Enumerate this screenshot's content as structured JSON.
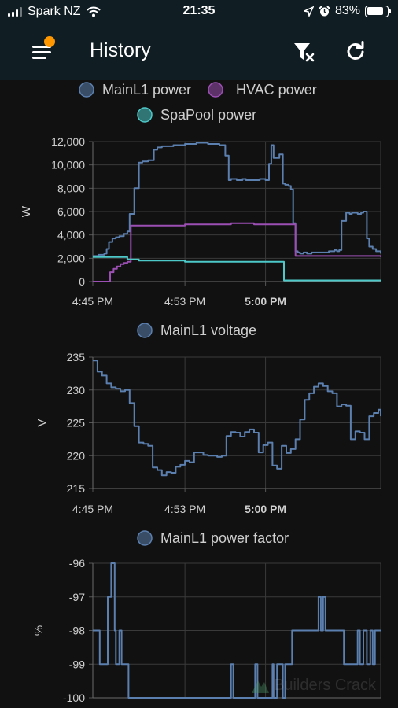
{
  "status_bar": {
    "carrier": "Spark NZ",
    "time": "21:35",
    "battery": "83%",
    "battery_level": 0.83
  },
  "toolbar": {
    "title": "History",
    "badge_color": "#ff9800"
  },
  "icons": {
    "menu": "menu-icon",
    "filter_clear": "filter-remove-icon",
    "refresh": "refresh-icon",
    "wifi": "wifi-icon",
    "location": "location-arrow-icon",
    "alarm": "alarm-clock-icon"
  },
  "watermark": {
    "text": "Builders Crack"
  },
  "chart_data": [
    {
      "type": "line",
      "ylabel": "W",
      "ylim": [
        0,
        12000
      ],
      "yticks": [
        "0",
        "2,000",
        "4,000",
        "6,000",
        "8,000",
        "10,000",
        "12,000"
      ],
      "ytick_values": [
        0,
        2000,
        4000,
        6000,
        8000,
        10000,
        12000
      ],
      "xlim": [
        0,
        25
      ],
      "xtick_labels": [
        "4:45 PM",
        "4:53 PM",
        "5:00 PM"
      ],
      "xtick_values": [
        0,
        8,
        15
      ],
      "xtick_bold": [
        false,
        false,
        true
      ],
      "grid": true,
      "legend_position": "top",
      "series": [
        {
          "name": "MainL1 power",
          "color": "#5b7fae",
          "x": [
            0,
            0.5,
            1,
            1.2,
            1.4,
            1.7,
            2,
            2.3,
            2.7,
            3,
            3.2,
            3.6,
            4,
            4.3,
            4.4,
            4.8,
            5.3,
            5.6,
            6,
            7,
            8,
            9,
            10,
            11,
            11.5,
            11.8,
            12,
            12.5,
            13,
            13.3,
            14,
            14.5,
            15,
            15.3,
            15.5,
            15.7,
            16.2,
            16.5,
            16.7,
            17,
            17.2,
            17.4,
            17.6,
            17.8,
            18,
            18.3,
            18.6,
            19,
            19.5,
            20,
            20.5,
            21,
            21.2,
            21.4,
            21.6,
            22,
            22.3,
            22.5,
            23,
            23.3,
            23.5,
            23.8,
            24,
            24.3,
            24.6,
            25
          ],
          "y": [
            2200,
            2300,
            2400,
            2800,
            3400,
            3700,
            3800,
            3900,
            4100,
            4300,
            5800,
            8000,
            10200,
            10300,
            10300,
            10400,
            11300,
            11500,
            11600,
            11700,
            11800,
            11900,
            11800,
            11700,
            10800,
            8700,
            8800,
            8700,
            8800,
            8700,
            8700,
            8800,
            8700,
            10100,
            11700,
            10600,
            10900,
            8400,
            8300,
            8200,
            7900,
            5000,
            2600,
            2500,
            2400,
            2500,
            2400,
            2500,
            2500,
            2500,
            2600,
            2700,
            2600,
            2700,
            5200,
            5900,
            5800,
            5900,
            5800,
            5900,
            6000,
            3700,
            3000,
            2800,
            2600,
            2400
          ]
        },
        {
          "name": "HVAC power",
          "color": "#9c4fb3",
          "x": [
            0,
            1.2,
            1.5,
            1.8,
            2.1,
            2.4,
            2.7,
            3.0,
            3.3,
            5,
            8,
            10,
            12,
            14,
            15.5,
            17.5,
            17.6,
            20,
            25
          ],
          "y": [
            0,
            0,
            800,
            1100,
            1300,
            1500,
            1600,
            1700,
            4800,
            4800,
            4900,
            4900,
            5000,
            4900,
            4900,
            4900,
            2200,
            2200,
            2100
          ]
        },
        {
          "name": "SpaPool power",
          "color": "#4ec9c9",
          "x": [
            0,
            3,
            4,
            6,
            8,
            12,
            14,
            15.5,
            16.5,
            16.6,
            25
          ],
          "y": [
            2100,
            1900,
            1800,
            1800,
            1700,
            1700,
            1700,
            1700,
            1700,
            100,
            100
          ]
        }
      ]
    },
    {
      "type": "line",
      "ylabel": "V",
      "ylim": [
        215,
        235
      ],
      "yticks": [
        "215",
        "220",
        "225",
        "230",
        "235"
      ],
      "ytick_values": [
        215,
        220,
        225,
        230,
        235
      ],
      "xlim": [
        0,
        25
      ],
      "xtick_labels": [
        "4:45 PM",
        "4:53 PM",
        "5:00 PM"
      ],
      "xtick_values": [
        0,
        8,
        15
      ],
      "xtick_bold": [
        false,
        false,
        true
      ],
      "grid": true,
      "legend_position": "top",
      "series": [
        {
          "name": "MainL1 voltage",
          "color": "#5b7fae",
          "x": [
            0,
            0.4,
            0.8,
            1.2,
            1.6,
            2.0,
            2.4,
            2.8,
            3.2,
            3.6,
            4.0,
            4.4,
            4.8,
            5.2,
            5.6,
            6.0,
            6.4,
            6.8,
            7.2,
            7.6,
            8.0,
            8.4,
            8.8,
            9.2,
            9.6,
            10.0,
            10.4,
            10.8,
            11.2,
            11.6,
            12.0,
            12.4,
            12.8,
            13.2,
            13.6,
            14.0,
            14.4,
            14.8,
            15.2,
            15.6,
            16.0,
            16.4,
            16.8,
            17.2,
            17.6,
            18.0,
            18.4,
            18.8,
            19.2,
            19.6,
            20.0,
            20.4,
            20.8,
            21.2,
            21.6,
            22.0,
            22.4,
            22.8,
            23.2,
            23.6,
            24.0,
            24.4,
            24.8,
            25.0
          ],
          "y": [
            234.5,
            232.8,
            232.2,
            231.0,
            230.4,
            230.2,
            229.8,
            230.0,
            228.0,
            224.5,
            222.0,
            221.8,
            221.5,
            218.2,
            217.8,
            217.0,
            217.5,
            217.4,
            218.3,
            218.6,
            219.2,
            219.0,
            220.5,
            220.5,
            220.1,
            220.0,
            220.0,
            219.8,
            220.0,
            223.0,
            223.6,
            223.5,
            222.9,
            223.6,
            224.0,
            223.5,
            220.5,
            221.6,
            222.0,
            218.5,
            218.0,
            221.5,
            220.4,
            221.0,
            222.5,
            225.5,
            228.5,
            229.5,
            230.5,
            231.0,
            230.6,
            229.8,
            229.5,
            227.5,
            227.8,
            227.6,
            222.5,
            223.7,
            223.5,
            222.5,
            226.0,
            226.5,
            227.0,
            226.0
          ]
        }
      ]
    },
    {
      "type": "line",
      "ylabel": "%",
      "ylim": [
        -100,
        -96
      ],
      "yticks": [
        "-100",
        "-99",
        "-98",
        "-97",
        "-96"
      ],
      "ytick_values": [
        -100,
        -99,
        -98,
        -97,
        -96
      ],
      "xlim": [
        0,
        25
      ],
      "xtick_labels": [],
      "grid": true,
      "legend_position": "top",
      "series": [
        {
          "name": "MainL1 power factor",
          "color": "#5b7fae",
          "x": [
            0,
            0.5,
            0.6,
            1.2,
            1.3,
            1.5,
            1.6,
            1.7,
            1.9,
            2.0,
            2.2,
            2.3,
            2.5,
            2.6,
            3.0,
            3.1,
            3.5,
            3.6,
            5,
            7,
            9,
            11,
            11.9,
            12.0,
            12.1,
            12.2,
            14,
            14.1,
            14.2,
            14.3,
            15.5,
            15.6,
            15.7,
            16.0,
            16.3,
            16.5,
            16.7,
            17.0,
            17.3,
            17.4,
            17.6,
            17.8,
            19.5,
            19.6,
            19.8,
            20.0,
            20.2,
            20.4,
            21.5,
            21.8,
            22.0,
            22.5,
            23.0,
            23.2,
            23.5,
            23.8,
            24.1,
            24.3,
            24.5,
            24.8,
            25.0
          ],
          "y": [
            -98,
            -98,
            -99,
            -99,
            -97,
            -97,
            -96,
            -96,
            -98,
            -99,
            -99,
            -98,
            -99,
            -99,
            -99,
            -100,
            -100,
            -100,
            -100,
            -100,
            -100,
            -100,
            -100,
            -99,
            -99,
            -100,
            -100,
            -99,
            -99,
            -100,
            -100,
            -99,
            -100,
            -99,
            -99,
            -100,
            -99,
            -99,
            -98,
            -98,
            -98,
            -98,
            -98,
            -97,
            -98,
            -97,
            -98,
            -98,
            -98,
            -99,
            -99,
            -99,
            -98,
            -99,
            -98,
            -99,
            -98,
            -99,
            -98,
            -98,
            -98
          ]
        }
      ]
    }
  ]
}
